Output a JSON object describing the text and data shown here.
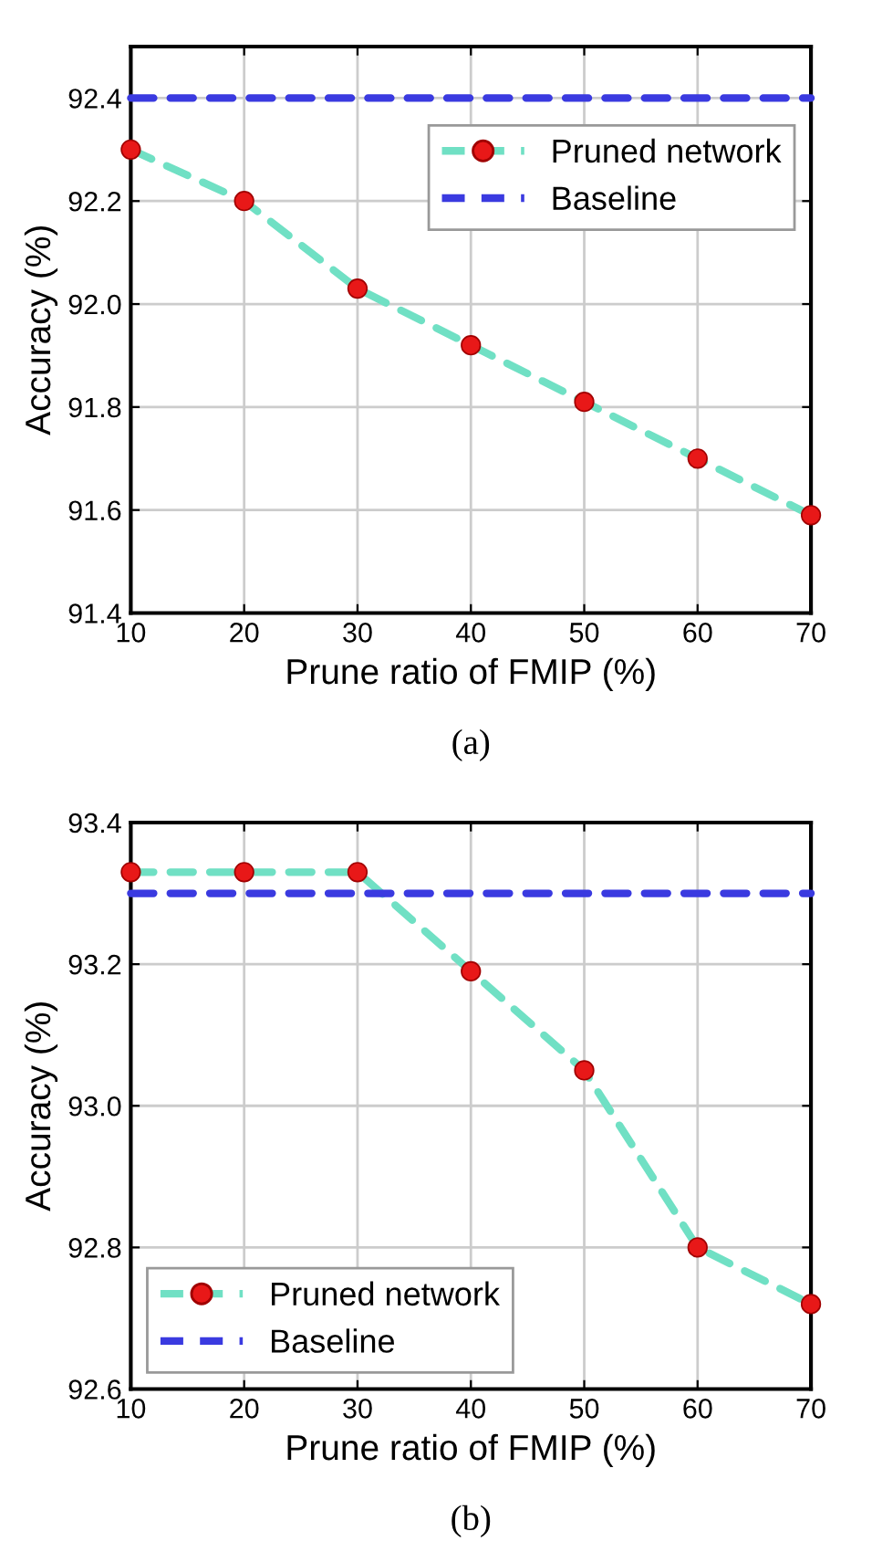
{
  "chart_data": [
    {
      "type": "line",
      "xlabel": "Prune ratio of FMIP (%)",
      "ylabel": "Accuracy (%)",
      "annotations": [
        "(a)"
      ],
      "x": [
        10,
        20,
        30,
        40,
        50,
        60,
        70
      ],
      "series": [
        {
          "name": "Pruned network",
          "color": "#70e0c4",
          "colors": [
            "#e81818",
            "#e81818",
            "#e81818",
            "#e81818",
            "#e81818",
            "#e81818",
            "#e81818"
          ],
          "marker": "circle",
          "line_style": "dashed",
          "values": [
            92.3,
            92.2,
            92.03,
            91.92,
            91.81,
            91.7,
            91.59
          ]
        },
        {
          "name": "Baseline",
          "color": "#3a3ae0",
          "marker": "none",
          "line_style": "dashed",
          "values": [
            92.4,
            92.4,
            92.4,
            92.4,
            92.4,
            92.4,
            92.4
          ]
        }
      ],
      "xlim": [
        10,
        70
      ],
      "xticks": [
        10,
        20,
        30,
        40,
        50,
        60,
        70
      ],
      "ylim": [
        91.4,
        92.5
      ],
      "yticks": [
        91.4,
        91.6,
        91.8,
        {
          "value": 92,
          "label": "92.0"
        },
        92.2,
        92.4
      ],
      "grid": true,
      "legend": "top right"
    },
    {
      "type": "line",
      "xlabel": "Prune ratio of FMIP (%)",
      "ylabel": "Accuracy (%)",
      "annotations": [
        "(b)"
      ],
      "x": [
        10,
        20,
        30,
        40,
        50,
        60,
        70
      ],
      "series": [
        {
          "name": "Pruned network",
          "color": "#70e0c4",
          "colors": [
            "#e81818",
            "#e81818",
            "#e81818",
            "#e81818",
            "#e81818",
            "#e81818",
            "#e81818"
          ],
          "marker": "circle",
          "line_style": "dashed",
          "values": [
            93.33,
            93.33,
            93.33,
            93.19,
            93.05,
            92.8,
            92.72
          ]
        },
        {
          "name": "Baseline",
          "color": "#3a3ae0",
          "marker": "none",
          "line_style": "dashed",
          "values": [
            93.3,
            93.3,
            93.3,
            93.3,
            93.3,
            93.3,
            93.3
          ]
        }
      ],
      "xlim": [
        10,
        70
      ],
      "xticks": [
        10,
        20,
        30,
        40,
        50,
        60,
        70
      ],
      "ylim": [
        92.6,
        93.4
      ],
      "yticks": [
        92.6,
        92.8,
        {
          "value": 93,
          "label": "93.0"
        },
        93.2,
        93.4
      ],
      "grid": true,
      "legend": "bottom left"
    }
  ]
}
